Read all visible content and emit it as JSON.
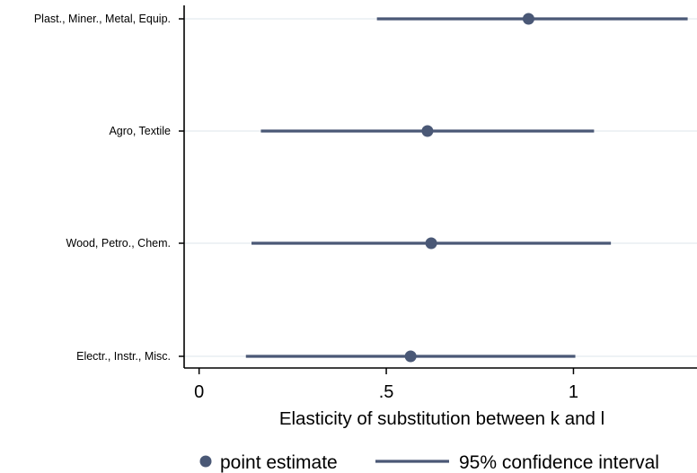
{
  "chart_data": {
    "type": "scatter",
    "orientation": "horizontal",
    "xlabel": "Elasticity of substitution between k and l",
    "xlim": [
      -0.04,
      1.33
    ],
    "xticks": [
      {
        "value": 0,
        "label": "0"
      },
      {
        "value": 0.5,
        "label": ".5"
      },
      {
        "value": 1,
        "label": "1"
      }
    ],
    "categories": [
      "Plast., Miner., Metal, Equip.",
      "Agro, Textile",
      "Wood, Petro., Chem.",
      "Electr., Instr., Misc."
    ],
    "series": [
      {
        "name": "point estimate",
        "values": [
          0.88,
          0.61,
          0.62,
          0.565
        ]
      },
      {
        "name": "95% confidence interval",
        "lower": [
          0.475,
          0.165,
          0.14,
          0.125
        ],
        "upper": [
          1.305,
          1.055,
          1.1,
          1.005
        ]
      }
    ],
    "grid": true,
    "legend": "bottom",
    "colors": {
      "marker": "#4a5876",
      "line": "#4a5876",
      "grid": "#eef2f5",
      "axis": "#000000"
    }
  }
}
